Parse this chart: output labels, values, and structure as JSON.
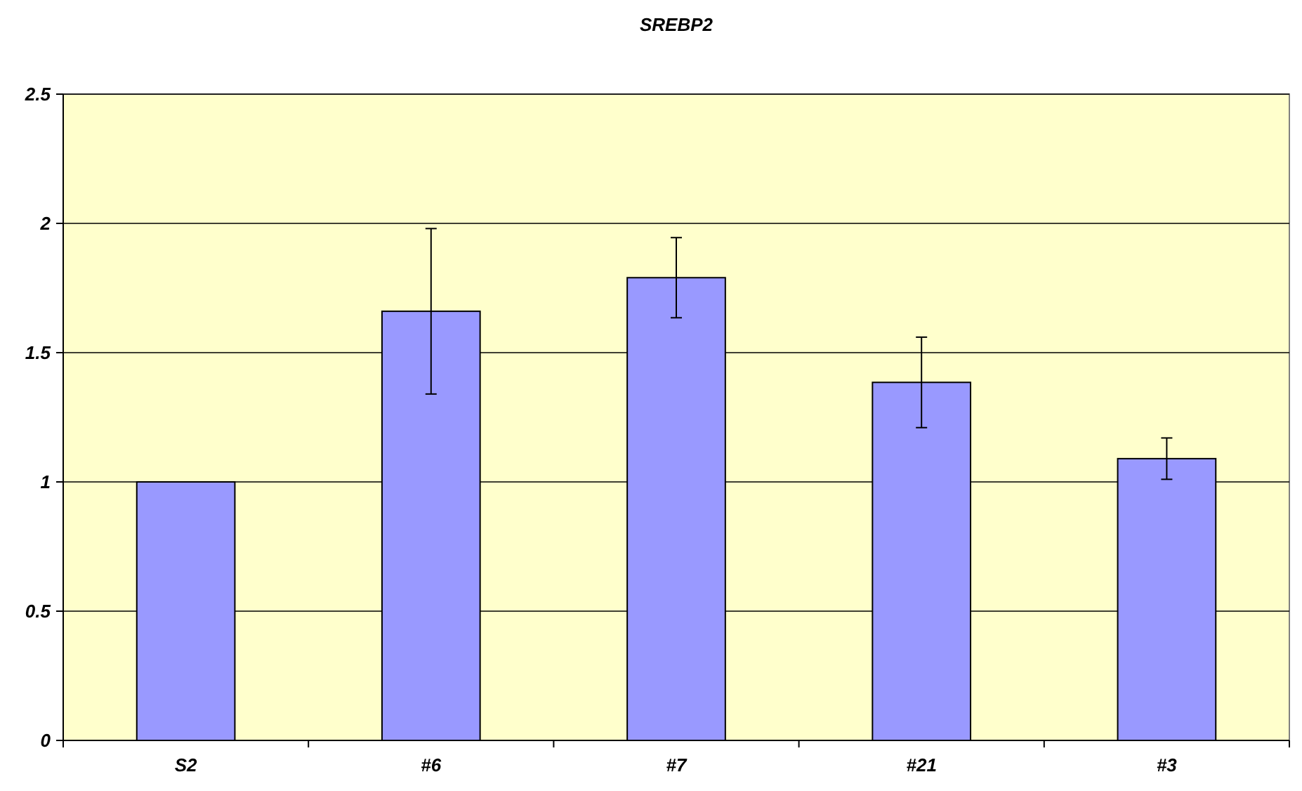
{
  "chart_data": {
    "type": "bar",
    "title": "SREBP2",
    "categories": [
      "S2",
      "#6",
      "#7",
      "#21",
      "#3"
    ],
    "values": [
      1.0,
      1.66,
      1.79,
      1.385,
      1.09
    ],
    "errors": [
      0,
      0.32,
      0.155,
      0.175,
      0.08
    ],
    "color": "#9999ff",
    "ylim": [
      0,
      2.5
    ],
    "yticks": [
      0,
      0.5,
      1,
      1.5,
      2,
      2.5
    ],
    "grid": "y"
  }
}
